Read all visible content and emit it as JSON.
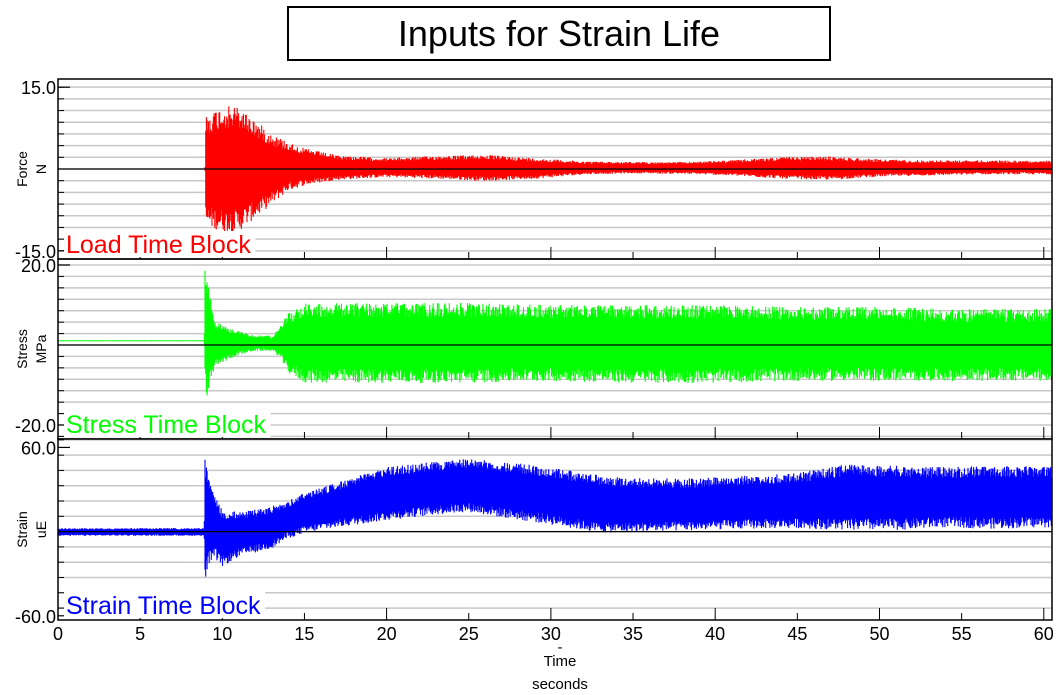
{
  "chart_data": {
    "type": "line",
    "title": "Inputs for Strain Life",
    "xlabel": "Time",
    "xunit": "seconds",
    "xdash": "-",
    "xlim": [
      0,
      60.5
    ],
    "xticks": [
      0,
      5,
      10,
      15,
      20,
      25,
      30,
      35,
      40,
      45,
      50,
      55,
      60
    ],
    "xtick_labels": [
      "0",
      "5",
      "10",
      "15",
      "20",
      "25",
      "30",
      "35",
      "40",
      "45",
      "50",
      "55",
      "60"
    ],
    "grid": true,
    "panels": [
      {
        "id": "force",
        "ylabel": "Force",
        "yunit": "N",
        "ylim": [
          -16.5,
          16.5
        ],
        "ytick_labels": [
          "15.0",
          "-15.0"
        ],
        "yticks": [
          15,
          -15
        ],
        "grid_step": 2.1428,
        "color": "#ff0000",
        "legend": "Load Time Block",
        "envelope": {
          "t": [
            0,
            8.9,
            8.95,
            9.0,
            10.0,
            11.0,
            12.0,
            13.0,
            14.0,
            15.0,
            17.0,
            20.0,
            23.0,
            26.0,
            29.0,
            32.0,
            35.0,
            38.0,
            41.0,
            44.0,
            47.0,
            50.0,
            53.0,
            56.0,
            60.5
          ],
          "upper": [
            0,
            0,
            0.5,
            10.0,
            11.5,
            11.5,
            9.0,
            6.5,
            5.0,
            3.8,
            2.5,
            2.0,
            2.4,
            2.6,
            2.0,
            1.4,
            1.3,
            1.3,
            1.6,
            2.2,
            2.3,
            1.8,
            1.6,
            1.6,
            1.5
          ],
          "lower": [
            0,
            0,
            -0.5,
            -10.5,
            -11.5,
            -11.5,
            -9.0,
            -6.5,
            -4.0,
            -3.0,
            -2.0,
            -1.5,
            -1.8,
            -2.2,
            -1.8,
            -1.0,
            -0.8,
            -0.9,
            -1.2,
            -1.8,
            -2.0,
            -1.4,
            -1.2,
            -1.0,
            -1.0
          ]
        }
      },
      {
        "id": "stress",
        "ylabel": "Stress",
        "yunit": "MPa",
        "ylim": [
          -23.5,
          21.5
        ],
        "ytick_labels": [
          "20.0",
          "-20.0"
        ],
        "yticks": [
          20,
          -20
        ],
        "grid_step": 2.857,
        "color": "#00ff00",
        "legend": "Stress Time Block",
        "envelope": {
          "t": [
            0,
            8.9,
            8.95,
            9.1,
            9.5,
            10.0,
            11.0,
            12.0,
            13.0,
            13.5,
            14.0,
            15.0,
            20.0,
            25.0,
            30.0,
            35.0,
            40.0,
            45.0,
            50.0,
            55.0,
            60.5
          ],
          "upper": [
            1.2,
            1.2,
            21.0,
            17.0,
            6.0,
            5.0,
            3.5,
            2.5,
            2.3,
            4.5,
            8.0,
            10.5,
            10.5,
            10.5,
            10.0,
            10.0,
            10.0,
            9.5,
            9.5,
            9.0,
            9.0
          ],
          "lower": [
            0.9,
            0.9,
            -11.5,
            -13.0,
            -6.0,
            -4.5,
            -2.5,
            -1.5,
            -1.5,
            -3.0,
            -7.0,
            -9.5,
            -9.5,
            -9.5,
            -9.0,
            -9.5,
            -9.5,
            -9.0,
            -9.0,
            -9.0,
            -9.0
          ]
        }
      },
      {
        "id": "strain",
        "ylabel": "Strain",
        "yunit": "uE",
        "ylim": [
          -63,
          66
        ],
        "ytick_labels": [
          "60.0",
          "-60.0"
        ],
        "yticks": [
          60,
          -60
        ],
        "grid_step": 10.9,
        "color": "#0000ff",
        "legend": "Strain Time Block",
        "envelope": {
          "t": [
            0,
            8.9,
            8.95,
            9.1,
            9.6,
            10.0,
            11.0,
            12.0,
            13.0,
            14.0,
            15.0,
            17.0,
            20.0,
            23.0,
            25.0,
            27.0,
            30.0,
            33.0,
            36.0,
            39.0,
            42.0,
            45.0,
            48.0,
            51.0,
            54.0,
            57.0,
            60.5
          ],
          "upper": [
            2.5,
            2.5,
            60.0,
            40.0,
            25.0,
            16.0,
            14.0,
            16.0,
            18.0,
            22.0,
            28.0,
            35.0,
            46.0,
            50.0,
            52.0,
            50.0,
            46.0,
            40.0,
            38.0,
            38.0,
            40.0,
            42.0,
            48.0,
            47.0,
            46.0,
            47.0,
            46.0
          ],
          "lower": [
            -3.0,
            -3.0,
            -45.0,
            -25.0,
            -20.0,
            -25.0,
            -18.0,
            -15.0,
            -12.0,
            -5.0,
            -1.0,
            3.0,
            8.0,
            12.0,
            14.0,
            10.0,
            5.0,
            -1.0,
            0.0,
            1.0,
            2.0,
            2.5,
            1.0,
            1.0,
            3.0,
            2.0,
            3.0
          ]
        }
      }
    ]
  }
}
